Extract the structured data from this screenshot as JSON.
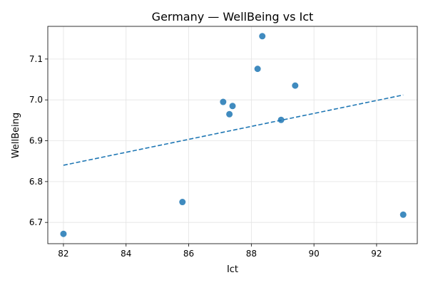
{
  "chart_data": {
    "type": "scatter",
    "title": "Germany — WellBeing vs Ict",
    "xlabel": "Ict",
    "ylabel": "WellBeing",
    "xlim": [
      81.5,
      93.3
    ],
    "ylim": [
      6.648,
      7.18
    ],
    "xticks": [
      82,
      84,
      86,
      88,
      90,
      92
    ],
    "yticks": [
      6.7,
      6.8,
      6.9,
      7.0,
      7.1
    ],
    "xtick_labels": [
      "82",
      "84",
      "86",
      "88",
      "90",
      "92"
    ],
    "ytick_labels": [
      "6.7",
      "6.8",
      "6.9",
      "7.0",
      "7.1"
    ],
    "grid": true,
    "points": [
      {
        "x": 82.0,
        "y": 6.672
      },
      {
        "x": 85.8,
        "y": 6.75
      },
      {
        "x": 87.1,
        "y": 6.995
      },
      {
        "x": 87.3,
        "y": 6.965
      },
      {
        "x": 87.4,
        "y": 6.985
      },
      {
        "x": 88.2,
        "y": 7.076
      },
      {
        "x": 88.35,
        "y": 7.156
      },
      {
        "x": 88.95,
        "y": 6.951
      },
      {
        "x": 89.4,
        "y": 7.035
      },
      {
        "x": 92.85,
        "y": 6.719
      }
    ],
    "trendline": {
      "x": [
        82.0,
        92.85
      ],
      "y": [
        6.84,
        7.012
      ],
      "style": "dashed"
    },
    "colors": {
      "points": "#1f77b4",
      "trend": "#1f77b4"
    }
  }
}
